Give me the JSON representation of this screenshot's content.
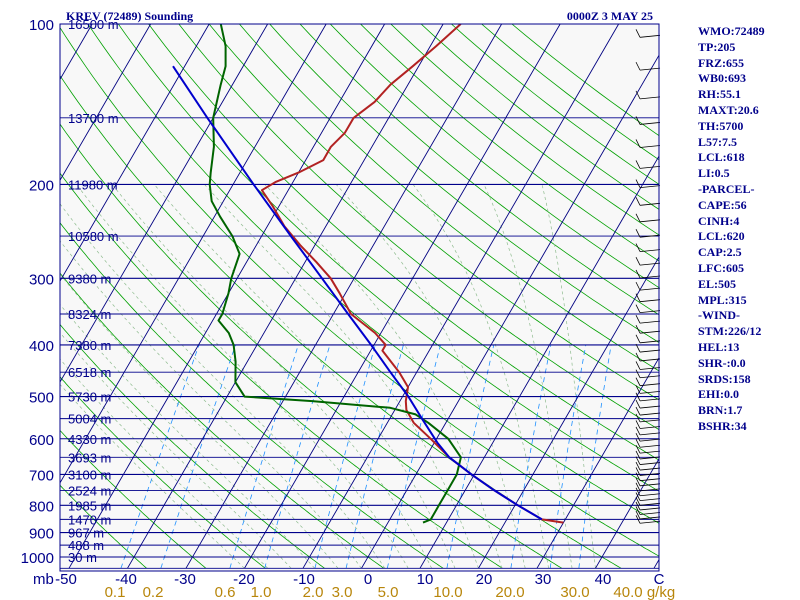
{
  "header": {
    "station": "KREV (72489) Sounding",
    "time": "0000Z  3 MAY 25"
  },
  "side_panel": [
    "WMO:72489",
    "TP:205",
    "FRZ:655",
    "WB0:693",
    "RH:55.1",
    "MAXT:20.6",
    "TH:5700",
    "L57:7.5",
    "LCL:618",
    "LI:0.5",
    "-PARCEL-",
    "CAPE:56",
    "CINH:4",
    "LCL:620",
    "CAP:2.5",
    "LFC:605",
    "EL:505",
    "MPL:315",
    "-WIND-",
    "STM:226/12",
    "HEL:13",
    "SHR-:0.0",
    "SRDS:158",
    "EHI:0.0",
    "BRN:1.7",
    "BSHR:34"
  ],
  "colors": {
    "background": "#f8f8f8",
    "isobar": "#00008b",
    "isotherm": "#000080",
    "dry_adiabat": "#00a000",
    "moist_adiabat": "#8fbc8f",
    "mixing_ratio": "#1e90ff",
    "temperature": "#b22222",
    "dewpoint": "#006400",
    "parcel": "#0000cd",
    "label": "#00008b",
    "mixing_label": "#b8860b",
    "barb": "#000000"
  },
  "chart_data": {
    "type": "line",
    "title": "",
    "xlabel": "",
    "ylabel": "mb",
    "pressure_ticks": [
      100,
      200,
      300,
      400,
      500,
      600,
      700,
      800,
      900,
      1000
    ],
    "temperature_ticks": [
      "-50",
      "-40",
      "-30",
      "-20",
      "-10",
      "0",
      "10",
      "20",
      "30",
      "40",
      "C"
    ],
    "mixing_ratio_ticks": [
      "0.1",
      "0.2",
      "0.6",
      "1.0",
      "2.0",
      "3.0",
      "5.0",
      "10.0",
      "20.0",
      "30.0",
      "40.0",
      "g/kg"
    ],
    "height_labels": [
      {
        "p": 100,
        "label": "16500 m"
      },
      {
        "p": 150,
        "label": "13700 m"
      },
      {
        "p": 200,
        "label": "11980 m"
      },
      {
        "p": 250,
        "label": "10580 m"
      },
      {
        "p": 300,
        "label": "9380 m"
      },
      {
        "p": 350,
        "label": "8324 m"
      },
      {
        "p": 400,
        "label": "7380 m"
      },
      {
        "p": 450,
        "label": "6518 m"
      },
      {
        "p": 500,
        "label": "5730 m"
      },
      {
        "p": 550,
        "label": "5004 m"
      },
      {
        "p": 600,
        "label": "4330 m"
      },
      {
        "p": 650,
        "label": "3693 m"
      },
      {
        "p": 700,
        "label": "3100 m"
      },
      {
        "p": 750,
        "label": "2524 m"
      },
      {
        "p": 800,
        "label": "1985 m"
      },
      {
        "p": 850,
        "label": "1470 m"
      },
      {
        "p": 900,
        "label": "967 m"
      },
      {
        "p": 950,
        "label": "488 m"
      },
      {
        "p": 1000,
        "label": "30 m"
      }
    ],
    "axes": {
      "pressure_range_mb": [
        100,
        1050
      ],
      "temperature_range_c": [
        -50,
        50
      ],
      "pressure_scale": "log",
      "skew": true
    },
    "series": [
      {
        "points": [
          {
            "p": 862,
            "t": 30
          },
          {
            "p": 850,
            "t": 26
          },
          {
            "p": 800,
            "t": 20.5
          },
          {
            "p": 750,
            "t": 15
          },
          {
            "p": 700,
            "t": 9.5
          },
          {
            "p": 650,
            "t": 4
          },
          {
            "p": 600,
            "t": -1
          },
          {
            "p": 560,
            "t": -5.5
          },
          {
            "p": 530,
            "t": -8
          },
          {
            "p": 510,
            "t": -9
          },
          {
            "p": 480,
            "t": -10
          },
          {
            "p": 450,
            "t": -13
          },
          {
            "p": 410,
            "t": -18
          },
          {
            "p": 400,
            "t": -18
          },
          {
            "p": 380,
            "t": -21
          },
          {
            "p": 350,
            "t": -27
          },
          {
            "p": 320,
            "t": -31
          },
          {
            "p": 300,
            "t": -34
          },
          {
            "p": 280,
            "t": -38
          },
          {
            "p": 260,
            "t": -42.5
          },
          {
            "p": 240,
            "t": -47
          },
          {
            "p": 220,
            "t": -51
          },
          {
            "p": 205,
            "t": -54.5
          },
          {
            "p": 198,
            "t": -53
          },
          {
            "p": 190,
            "t": -50
          },
          {
            "p": 180,
            "t": -47
          },
          {
            "p": 170,
            "t": -47
          },
          {
            "p": 160,
            "t": -46
          },
          {
            "p": 150,
            "t": -46
          },
          {
            "p": 140,
            "t": -44
          },
          {
            "p": 130,
            "t": -43
          },
          {
            "p": 120,
            "t": -41
          },
          {
            "p": 110,
            "t": -39
          },
          {
            "p": 100,
            "t": -37
          }
        ]
      },
      {
        "points": [
          {
            "p": 862,
            "t": 6
          },
          {
            "p": 850,
            "t": 7
          },
          {
            "p": 800,
            "t": 7
          },
          {
            "p": 750,
            "t": 7
          },
          {
            "p": 700,
            "t": 7
          },
          {
            "p": 650,
            "t": 6
          },
          {
            "p": 600,
            "t": 2
          },
          {
            "p": 560,
            "t": -3
          },
          {
            "p": 540,
            "t": -6
          },
          {
            "p": 525,
            "t": -11
          },
          {
            "p": 510,
            "t": -25
          },
          {
            "p": 500,
            "t": -37
          },
          {
            "p": 470,
            "t": -40
          },
          {
            "p": 430,
            "t": -42
          },
          {
            "p": 400,
            "t": -44
          },
          {
            "p": 380,
            "t": -46
          },
          {
            "p": 360,
            "t": -49
          },
          {
            "p": 350,
            "t": -49
          },
          {
            "p": 320,
            "t": -50
          },
          {
            "p": 300,
            "t": -51
          },
          {
            "p": 270,
            "t": -52
          },
          {
            "p": 250,
            "t": -55
          },
          {
            "p": 230,
            "t": -59
          },
          {
            "p": 215,
            "t": -62
          },
          {
            "p": 200,
            "t": -64
          },
          {
            "p": 190,
            "t": -65
          },
          {
            "p": 170,
            "t": -67
          },
          {
            "p": 150,
            "t": -70
          },
          {
            "p": 130,
            "t": -72
          },
          {
            "p": 120,
            "t": -73
          },
          {
            "p": 110,
            "t": -75
          },
          {
            "p": 100,
            "t": -78
          }
        ]
      },
      {
        "points": [
          {
            "p": 850,
            "t": 26
          },
          {
            "p": 800,
            "t": 20.5
          },
          {
            "p": 750,
            "t": 15
          },
          {
            "p": 700,
            "t": 9.5
          },
          {
            "p": 650,
            "t": 4
          },
          {
            "p": 610,
            "t": 0.5
          },
          {
            "p": 550,
            "t": -4.5
          },
          {
            "p": 500,
            "t": -9
          },
          {
            "p": 450,
            "t": -14.5
          },
          {
            "p": 400,
            "t": -20.5
          },
          {
            "p": 350,
            "t": -27.5
          },
          {
            "p": 300,
            "t": -35.5
          },
          {
            "p": 250,
            "t": -45
          },
          {
            "p": 200,
            "t": -56.5
          },
          {
            "p": 150,
            "t": -71
          },
          {
            "p": 120,
            "t": -82
          }
        ]
      }
    ]
  }
}
